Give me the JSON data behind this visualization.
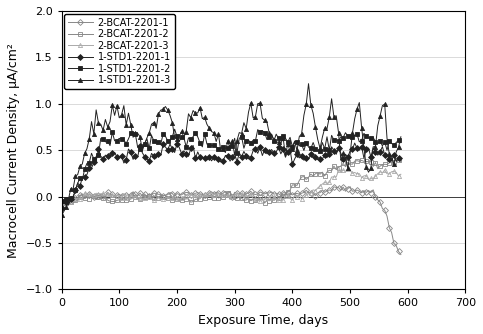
{
  "title": "",
  "xlabel": "Exposure Time, days",
  "ylabel": "Macrocell Current Density, μA/cm²",
  "xlim": [
    0,
    700
  ],
  "ylim": [
    -1.0,
    2.0
  ],
  "yticks": [
    -1.0,
    -0.5,
    0.0,
    0.5,
    1.0,
    1.5,
    2.0
  ],
  "xticks": [
    0,
    100,
    200,
    300,
    400,
    500,
    600,
    700
  ],
  "background_color": "#ffffff",
  "legend_loc": "upper left",
  "legend_fontsize": 7,
  "axis_fontsize": 9,
  "tick_fontsize": 8,
  "series": [
    {
      "label": "2-BCAT-2201-1",
      "marker": "D",
      "markersize": 3,
      "color": "#888888",
      "fillstyle": "none",
      "linewidth": 0.7,
      "markeredgewidth": 0.6
    },
    {
      "label": "2-BCAT-2201-2",
      "marker": "s",
      "markersize": 3,
      "color": "#888888",
      "fillstyle": "none",
      "linewidth": 0.7,
      "markeredgewidth": 0.6
    },
    {
      "label": "2-BCAT-2201-3",
      "marker": "^",
      "markersize": 3,
      "color": "#aaaaaa",
      "fillstyle": "none",
      "linewidth": 0.7,
      "markeredgewidth": 0.6
    },
    {
      "label": "1-STD1-2201-1",
      "marker": "D",
      "markersize": 3,
      "color": "#222222",
      "fillstyle": "full",
      "linewidth": 0.7,
      "markeredgewidth": 0.6
    },
    {
      "label": "1-STD1-2201-2",
      "marker": "s",
      "markersize": 3,
      "color": "#222222",
      "fillstyle": "full",
      "linewidth": 0.7,
      "markeredgewidth": 0.6
    },
    {
      "label": "1-STD1-2201-3",
      "marker": "^",
      "markersize": 3,
      "color": "#222222",
      "fillstyle": "full",
      "linewidth": 0.7,
      "markeredgewidth": 0.6
    }
  ]
}
